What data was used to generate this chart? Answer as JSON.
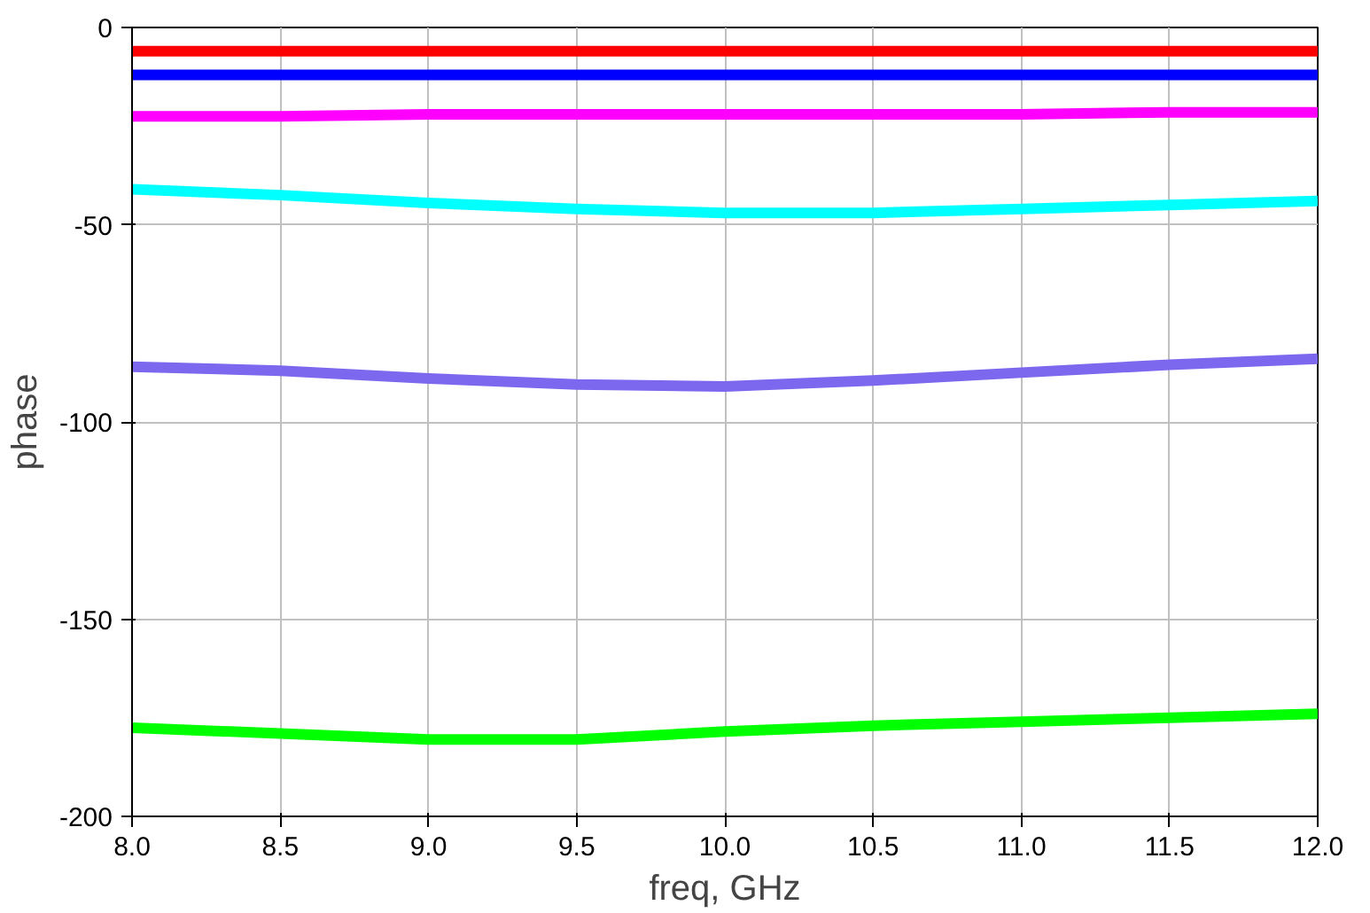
{
  "chart_data": {
    "type": "line",
    "xlabel": "freq, GHz",
    "ylabel": "phase",
    "xlim": [
      8,
      12
    ],
    "ylim": [
      -200,
      0
    ],
    "xticks": [
      {
        "value": 8,
        "label": "8.0"
      },
      {
        "value": 8.5,
        "label": "8.5"
      },
      {
        "value": 9,
        "label": "9.0"
      },
      {
        "value": 9.5,
        "label": "9.5"
      },
      {
        "value": 10,
        "label": "10.0"
      },
      {
        "value": 10.5,
        "label": "10.5"
      },
      {
        "value": 11,
        "label": "11.0"
      },
      {
        "value": 11.5,
        "label": "11.5"
      },
      {
        "value": 12,
        "label": "12.0"
      }
    ],
    "yticks": [
      -200,
      -150,
      -100,
      -50,
      0
    ],
    "grid": true,
    "marker": "none",
    "line_style": "solid",
    "x": [
      8,
      8.5,
      9,
      9.5,
      10,
      10.5,
      11,
      11.5,
      12
    ],
    "series": [
      {
        "color": "#ff0000",
        "values": [
          -6,
          -6,
          -6,
          -6,
          -6,
          -6,
          -6,
          -6,
          -6
        ]
      },
      {
        "color": "#0000ff",
        "values": [
          -12,
          -12,
          -12,
          -12,
          -12,
          -12,
          -12,
          -12,
          -12
        ]
      },
      {
        "color": "#ff00ff",
        "values": [
          -22.5,
          -22.5,
          -22,
          -22,
          -22,
          -22,
          -22,
          -21.5,
          -21.5
        ]
      },
      {
        "color": "#00ffff",
        "values": [
          -41,
          -42.5,
          -44.5,
          -46,
          -47,
          -47,
          -46,
          -45,
          -44
        ]
      },
      {
        "color": "#7b68ee",
        "values": [
          -86,
          -87,
          -89,
          -90.5,
          -91,
          -89.5,
          -87.5,
          -85.5,
          -84
        ]
      },
      {
        "color": "#00ff00",
        "values": [
          -177.5,
          -179,
          -180.5,
          -180.5,
          -178.5,
          -177,
          -176,
          -175,
          -174
        ]
      }
    ]
  }
}
